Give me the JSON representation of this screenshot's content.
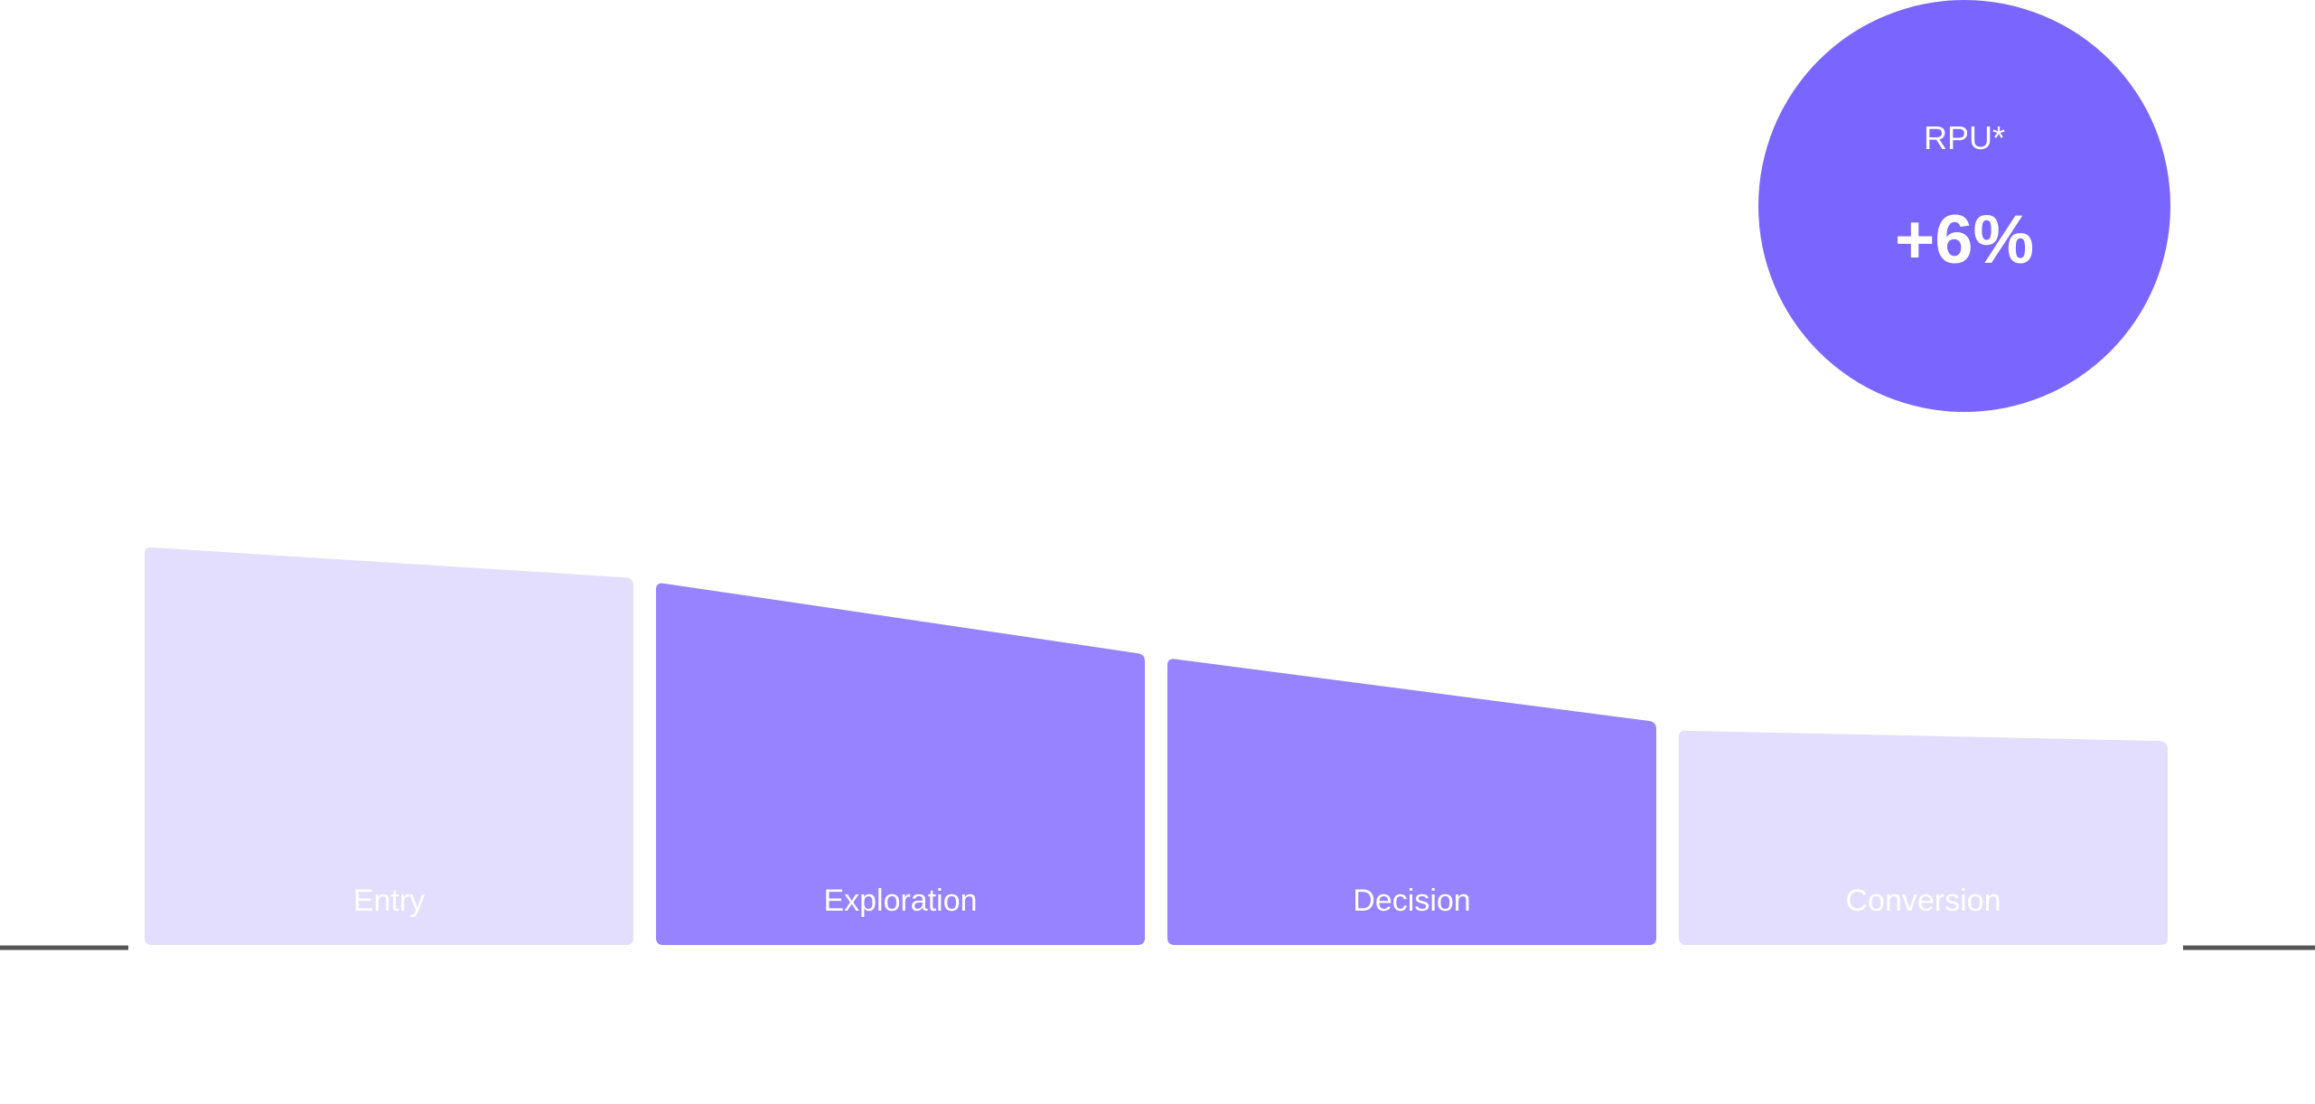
{
  "chart_data": {
    "type": "funnel",
    "categories": [
      "Entry",
      "Exploration",
      "Decision",
      "Conversion"
    ],
    "series": [
      {
        "segments": [
          {
            "start": 100,
            "end": 92
          },
          {
            "start": 91,
            "end": 73
          },
          {
            "start": 72,
            "end": 56
          },
          {
            "start": 54,
            "end": 51
          }
        ]
      }
    ],
    "highlighted": [
      "Exploration",
      "Decision"
    ],
    "ylim": [
      0,
      100
    ],
    "grid": false,
    "legend": "none"
  },
  "metric": {
    "label": "RPU*",
    "value": "+6%"
  },
  "colors": {
    "highlight": "#9782ff",
    "muted": "#e3defe",
    "circle": "#7b65ff",
    "baseline": "#555555",
    "text": "#ffffff"
  }
}
